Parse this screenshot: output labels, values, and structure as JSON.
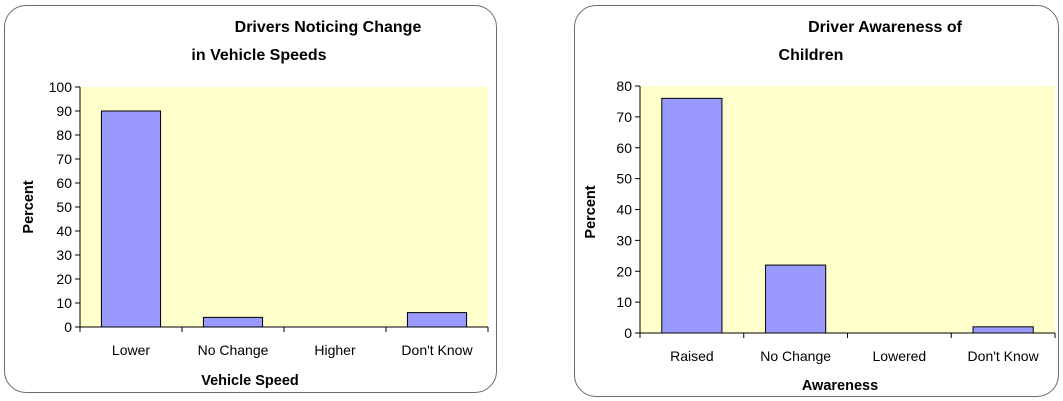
{
  "charts": [
    {
      "title_line1": "Drivers Noticing Change",
      "title_line2": "in Vehicle Speeds",
      "xlabel": "Vehicle Speed",
      "ylabel": "Percent"
    },
    {
      "title_line1": "Driver Awareness of",
      "title_line2": "Children",
      "xlabel": "Awareness",
      "ylabel": "Percent"
    }
  ],
  "colors": {
    "plot_bg": "#ffffcc",
    "bar_fill": "#9999ff",
    "bar_stroke": "#000000"
  },
  "chart_data": [
    {
      "type": "bar",
      "title": "Drivers Noticing Change in Vehicle Speeds",
      "xlabel": "Vehicle Speed",
      "ylabel": "Percent",
      "categories": [
        "Lower",
        "No Change",
        "Higher",
        "Don't Know"
      ],
      "values": [
        90,
        4,
        0,
        6
      ],
      "ylim": [
        0,
        100
      ],
      "yticks": [
        0,
        10,
        20,
        30,
        40,
        50,
        60,
        70,
        80,
        90,
        100
      ],
      "grid": false,
      "legend": "none"
    },
    {
      "type": "bar",
      "title": "Driver Awareness of Children",
      "xlabel": "Awareness",
      "ylabel": "Percent",
      "categories": [
        "Raised",
        "No Change",
        "Lowered",
        "Don't Know"
      ],
      "values": [
        76,
        22,
        0,
        2
      ],
      "ylim": [
        0,
        80
      ],
      "yticks": [
        0,
        10,
        20,
        30,
        40,
        50,
        60,
        70,
        80
      ],
      "grid": false,
      "legend": "none"
    }
  ]
}
